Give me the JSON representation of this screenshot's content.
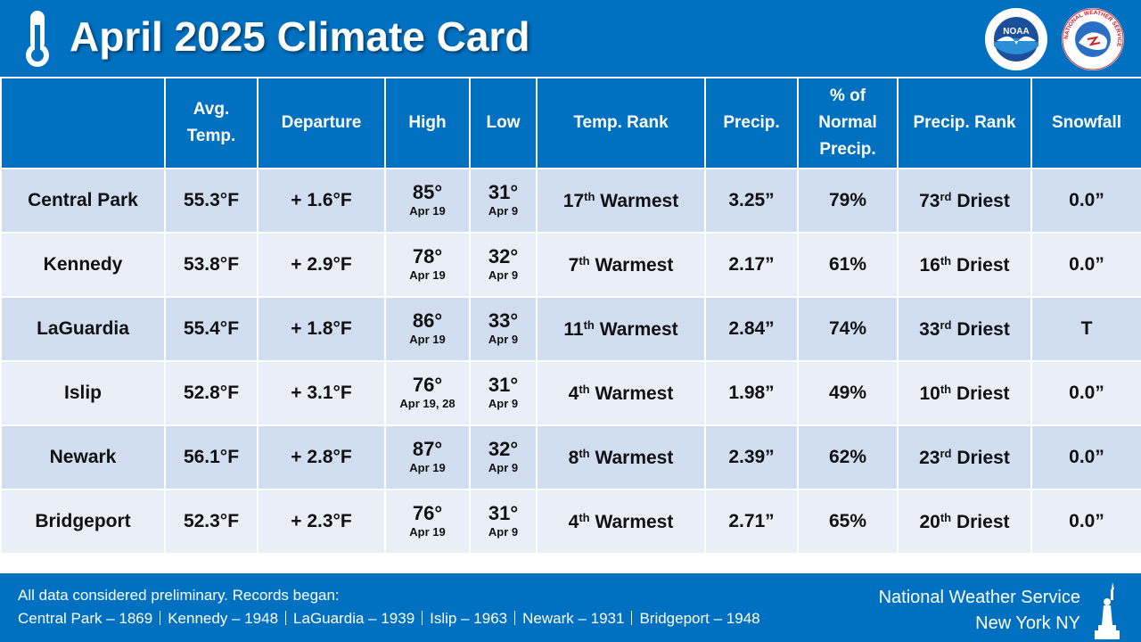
{
  "header": {
    "title": "April 2025 Climate Card",
    "logos": {
      "noaa": "NOAA",
      "nws": "NATIONAL WEATHER SERVICE"
    }
  },
  "table": {
    "columns": [
      [
        "Avg.",
        "Temp."
      ],
      [
        "Departure"
      ],
      [
        "High"
      ],
      [
        "Low"
      ],
      [
        "Temp. Rank"
      ],
      [
        "Precip."
      ],
      [
        "% of",
        "Normal",
        "Precip."
      ],
      [
        "Precip. Rank"
      ],
      [
        "Snowfall"
      ]
    ],
    "rows": [
      {
        "station": "Central Park",
        "avg_temp": "55.3°F",
        "departure": "+ 1.6°F",
        "high": {
          "value": "85°",
          "date": "Apr 19"
        },
        "low": {
          "value": "31°",
          "date": "Apr 9"
        },
        "temp_rank": {
          "num": "17",
          "suffix": "th",
          "word": "Warmest"
        },
        "precip": "3.25”",
        "pct_normal": "79%",
        "precip_rank": {
          "num": "73",
          "suffix": "rd",
          "word": "Driest"
        },
        "snowfall": "0.0”"
      },
      {
        "station": "Kennedy",
        "avg_temp": "53.8°F",
        "departure": "+ 2.9°F",
        "high": {
          "value": "78°",
          "date": "Apr 19"
        },
        "low": {
          "value": "32°",
          "date": "Apr 9"
        },
        "temp_rank": {
          "num": "7",
          "suffix": "th",
          "word": "Warmest"
        },
        "precip": "2.17”",
        "pct_normal": "61%",
        "precip_rank": {
          "num": "16",
          "suffix": "th",
          "word": "Driest"
        },
        "snowfall": "0.0”"
      },
      {
        "station": "LaGuardia",
        "avg_temp": "55.4°F",
        "departure": "+ 1.8°F",
        "high": {
          "value": "86°",
          "date": "Apr 19"
        },
        "low": {
          "value": "33°",
          "date": "Apr 9"
        },
        "temp_rank": {
          "num": "11",
          "suffix": "th",
          "word": "Warmest"
        },
        "precip": "2.84”",
        "pct_normal": "74%",
        "precip_rank": {
          "num": "33",
          "suffix": "rd",
          "word": "Driest"
        },
        "snowfall": "T"
      },
      {
        "station": "Islip",
        "avg_temp": "52.8°F",
        "departure": "+ 3.1°F",
        "high": {
          "value": "76°",
          "date": "Apr 19, 28"
        },
        "low": {
          "value": "31°",
          "date": "Apr 9"
        },
        "temp_rank": {
          "num": "4",
          "suffix": "th",
          "word": "Warmest"
        },
        "precip": "1.98”",
        "pct_normal": "49%",
        "precip_rank": {
          "num": "10",
          "suffix": "th",
          "word": "Driest"
        },
        "snowfall": "0.0”"
      },
      {
        "station": "Newark",
        "avg_temp": "56.1°F",
        "departure": "+ 2.8°F",
        "high": {
          "value": "87°",
          "date": "Apr 19"
        },
        "low": {
          "value": "32°",
          "date": "Apr 9"
        },
        "temp_rank": {
          "num": "8",
          "suffix": "th",
          "word": "Warmest"
        },
        "precip": "2.39”",
        "pct_normal": "62%",
        "precip_rank": {
          "num": "23",
          "suffix": "rd",
          "word": "Driest"
        },
        "snowfall": "0.0”"
      },
      {
        "station": "Bridgeport",
        "avg_temp": "52.3°F",
        "departure": "+ 2.3°F",
        "high": {
          "value": "76°",
          "date": "Apr 19"
        },
        "low": {
          "value": "31°",
          "date": "Apr 9"
        },
        "temp_rank": {
          "num": "4",
          "suffix": "th",
          "word": "Warmest"
        },
        "precip": "2.71”",
        "pct_normal": "65%",
        "precip_rank": {
          "num": "20",
          "suffix": "th",
          "word": "Driest"
        },
        "snowfall": "0.0”"
      }
    ]
  },
  "footer": {
    "note": "All data considered preliminary. Records began:",
    "records": [
      "Central Park – 1869",
      "Kennedy – 1948",
      "LaGuardia – 1939",
      "Islip – 1963",
      "Newark – 1931",
      "Bridgeport – 1948"
    ],
    "org": [
      "National Weather Service",
      "New York NY"
    ]
  }
}
